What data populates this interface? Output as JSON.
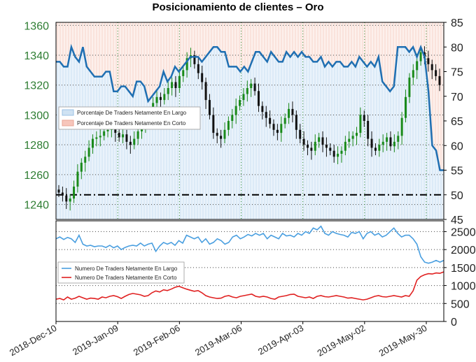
{
  "chart_data": {
    "type": "candlestick+line",
    "title": "Posicionamiento de clientes – Oro",
    "x_ticks": [
      "2018-Dec-10",
      "2019-Jan-09",
      "2019-Feb-06",
      "2019-Mar-06",
      "2019-Apr-03",
      "2019-May-02",
      "2019-May-30"
    ],
    "upper_panel": {
      "price_axis": {
        "ticks": [
          "1360",
          "1340",
          "1320",
          "1300",
          "1280",
          "1260",
          "1240"
        ],
        "range": [
          1230,
          1362
        ]
      },
      "percent_axis": {
        "ticks": [
          "85",
          "80",
          "75",
          "70",
          "65",
          "60",
          "55",
          "50",
          "45"
        ],
        "range": [
          45,
          85
        ]
      },
      "reference_line_pct": 50,
      "legend": [
        "Porcentaje De Traders Netamente En Largo",
        "Porcentaje De Traders Netamente En Corto"
      ],
      "percent_long_series": [
        77,
        77,
        76,
        76,
        80,
        78,
        77,
        80,
        76,
        75,
        74,
        74,
        74,
        75,
        75,
        71,
        71,
        72,
        72,
        71,
        70,
        73,
        73,
        72,
        69,
        70,
        71,
        72,
        75,
        73,
        74,
        76,
        75,
        76,
        77,
        78,
        78,
        78,
        77,
        78,
        79,
        80,
        80,
        79,
        79,
        76,
        76,
        76,
        75,
        76,
        75,
        77,
        79,
        79,
        78,
        77,
        79,
        78,
        77,
        77,
        79,
        78,
        79,
        78,
        79,
        78,
        78,
        77,
        77,
        78,
        76,
        77,
        76,
        77,
        77,
        76,
        76,
        77,
        76,
        78,
        77,
        76,
        77,
        76,
        78,
        73,
        72,
        71,
        72,
        80,
        80,
        80,
        79,
        80,
        78,
        80,
        78,
        71,
        60,
        59,
        55,
        55
      ],
      "candles_close": [
        1248,
        1246,
        1242,
        1244,
        1252,
        1262,
        1268,
        1272,
        1278,
        1284,
        1285,
        1286,
        1289,
        1290,
        1292,
        1288,
        1285,
        1287,
        1282,
        1280,
        1284,
        1289,
        1294,
        1300,
        1302,
        1308,
        1312,
        1310,
        1314,
        1318,
        1322,
        1318,
        1326,
        1330,
        1338,
        1340,
        1334,
        1328,
        1322,
        1310,
        1300,
        1288,
        1286,
        1284,
        1290,
        1296,
        1300,
        1306,
        1310,
        1314,
        1318,
        1321,
        1316,
        1306,
        1302,
        1298,
        1294,
        1290,
        1288,
        1294,
        1298,
        1304,
        1300,
        1290,
        1284,
        1280,
        1278,
        1276,
        1282,
        1285,
        1280,
        1278,
        1276,
        1272,
        1274,
        1276,
        1282,
        1284,
        1286,
        1288,
        1300,
        1296,
        1284,
        1278,
        1276,
        1280,
        1282,
        1285,
        1279,
        1282,
        1286,
        1298,
        1312,
        1325,
        1330,
        1336,
        1342,
        1338,
        1334,
        1330,
        1326,
        1320
      ]
    },
    "lower_panel": {
      "count_axis": {
        "ticks": [
          "2500",
          "2000",
          "1500",
          "1000",
          "500",
          "0"
        ],
        "range": [
          0,
          2800
        ]
      },
      "legend": [
        "Numero De Traders Netamente En Largo",
        "Numero De Traders Netamente En Corto"
      ],
      "long_series": [
        2300,
        2350,
        2280,
        2340,
        2300,
        2200,
        2400,
        2150,
        2100,
        2120,
        2080,
        2100,
        2100,
        2060,
        2120,
        2050,
        2100,
        2000,
        2060,
        2100,
        2120,
        2100,
        2180,
        2100,
        2150,
        2180,
        1950,
        2100,
        2200,
        2150,
        2200,
        2120,
        2250,
        2180,
        2400,
        2350,
        2300,
        2350,
        2200,
        2300,
        2150,
        2200,
        2300,
        2250,
        2150,
        2200,
        2350,
        2400,
        2300,
        2350,
        2420,
        2380,
        2450,
        2400,
        2450,
        2300,
        2400,
        2350,
        2300,
        2450,
        2380,
        2400,
        2350,
        2450,
        2400,
        2500,
        2450,
        2600,
        2550,
        2650,
        2450,
        2400,
        2500,
        2450,
        2420,
        2400,
        2350,
        2480,
        2450,
        2500,
        2300,
        2450,
        2500,
        2400,
        2450,
        2350,
        2400,
        2500,
        2600,
        2450,
        2350,
        2400,
        2400,
        2300,
        2150,
        1800,
        1650,
        1620,
        1650,
        1700,
        1650,
        1700
      ],
      "short_series": [
        620,
        640,
        600,
        680,
        620,
        650,
        700,
        660,
        620,
        650,
        640,
        620,
        680,
        660,
        700,
        720,
        690,
        640,
        700,
        750,
        780,
        760,
        740,
        700,
        720,
        800,
        850,
        820,
        880,
        860,
        900,
        950,
        980,
        940,
        900,
        870,
        840,
        860,
        800,
        720,
        680,
        660,
        640,
        650,
        700,
        720,
        680,
        660,
        700,
        720,
        740,
        760,
        700,
        680,
        700,
        680,
        640,
        620,
        680,
        700,
        720,
        750,
        760,
        700,
        680,
        660,
        680,
        640,
        700,
        720,
        690,
        680,
        700,
        720,
        700,
        680,
        650,
        660,
        640,
        620,
        600,
        620,
        660,
        700,
        720,
        690,
        680,
        700,
        720,
        700,
        680,
        720,
        700,
        850,
        1150,
        1250,
        1300,
        1330,
        1320,
        1350,
        1340,
        1380
      ]
    }
  }
}
